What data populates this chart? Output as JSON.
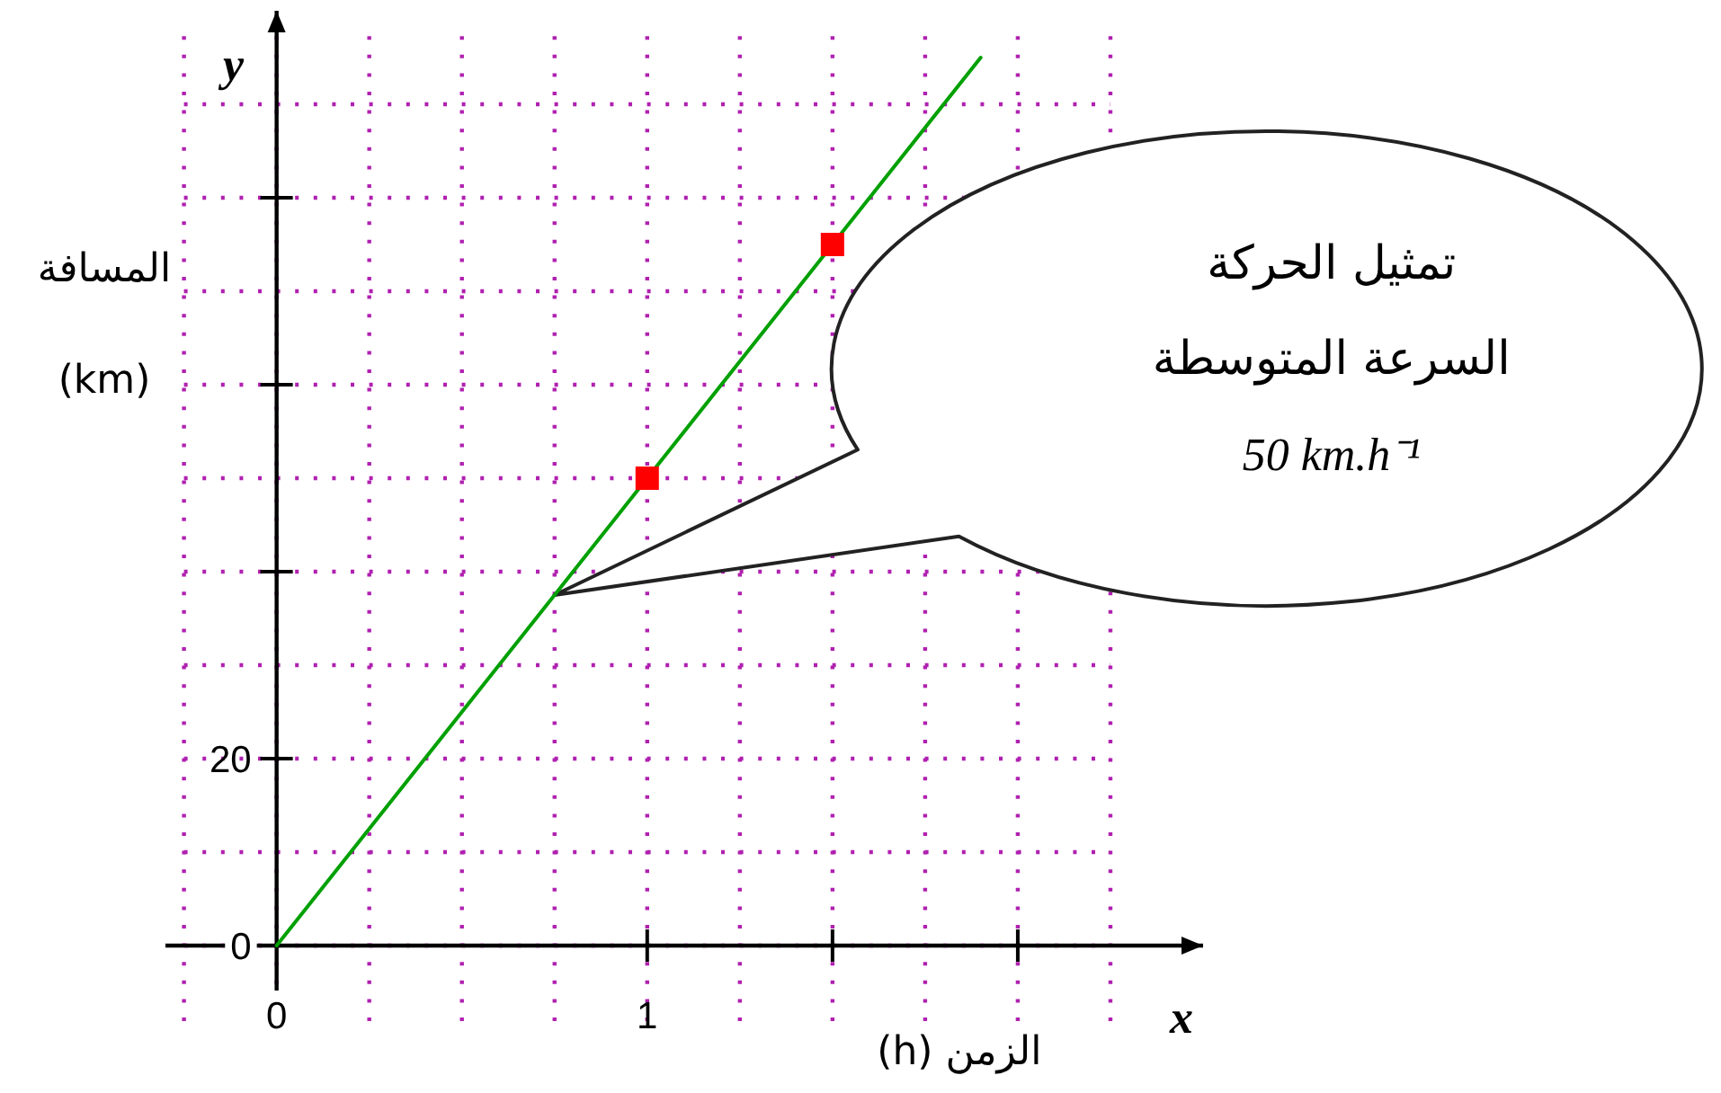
{
  "chart_data": {
    "type": "line",
    "xlabel": "الزمن (h)",
    "ylabel": "المسافة (km)",
    "series": [
      {
        "type": "line",
        "color": "#00a000",
        "x": [
          0,
          1.9
        ],
        "values": [
          0,
          95
        ]
      },
      {
        "type": "scatter",
        "color": "#ff0000",
        "marker": "square",
        "x": [
          1,
          1.5
        ],
        "values": [
          50,
          75
        ]
      }
    ],
    "xlim": [
      -0.3,
      2.5
    ],
    "ylim": [
      -10,
      100
    ],
    "xticks": [
      {
        "value": 0,
        "label": "0"
      },
      {
        "value": 1,
        "label": "1"
      },
      {
        "value": 1.5,
        "label": null
      },
      {
        "value": 2,
        "label": null
      }
    ],
    "yticks": [
      {
        "value": 0,
        "label": "0"
      },
      {
        "value": 20,
        "label": "20"
      },
      {
        "value": 40,
        "label": null
      },
      {
        "value": 60,
        "label": null
      },
      {
        "value": 80,
        "label": null
      }
    ],
    "grid": true,
    "annotations": [
      "y",
      "x",
      {
        "text": "تمثيل الحركة\nالسرعة المتوسطة\n50 km.h⁻¹",
        "x": 0.75,
        "y": 37.5
      }
    ]
  }
}
